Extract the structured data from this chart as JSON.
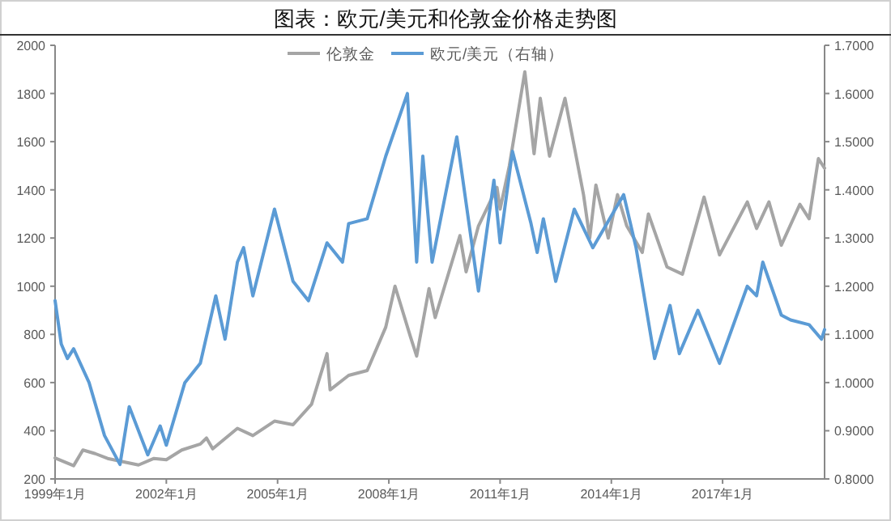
{
  "chart_data": {
    "type": "line",
    "title": "图表：欧元/美元和伦敦金价格走势图",
    "legend": "top",
    "xlim": [
      "1999-01",
      "2019-10"
    ],
    "xticks": [
      {
        "value": "1999-01",
        "label": "1999年1月"
      },
      {
        "value": "2002-01",
        "label": "2002年1月"
      },
      {
        "value": "2005-01",
        "label": "2005年1月"
      },
      {
        "value": "2008-01",
        "label": "2008年1月"
      },
      {
        "value": "2011-01",
        "label": "2011年1月"
      },
      {
        "value": "2014-01",
        "label": "2014年1月"
      },
      {
        "value": "2017-01",
        "label": "2017年1月"
      }
    ],
    "ylim": [
      200,
      2000
    ],
    "yticks": [
      200,
      400,
      600,
      800,
      1000,
      1200,
      1400,
      1600,
      1800,
      2000
    ],
    "y2lim": [
      0.8,
      1.7
    ],
    "y2ticks": [
      {
        "value": 0.8,
        "label": "0.8000"
      },
      {
        "value": 0.9,
        "label": "0.9000"
      },
      {
        "value": 1.0,
        "label": "1.0000"
      },
      {
        "value": 1.1,
        "label": "1.1000"
      },
      {
        "value": 1.2,
        "label": "1.2000"
      },
      {
        "value": 1.3,
        "label": "1.3000"
      },
      {
        "value": 1.4,
        "label": "1.4000"
      },
      {
        "value": 1.5,
        "label": "1.5000"
      },
      {
        "value": 1.6,
        "label": "1.6000"
      },
      {
        "value": 1.7,
        "label": "1.7000"
      }
    ],
    "series": [
      {
        "name": "伦敦金",
        "color": "#a5a5a5",
        "x": [
          "1999-01",
          "1999-07",
          "1999-10",
          "2000-02",
          "2000-06",
          "2001-04",
          "2001-09",
          "2002-01",
          "2002-06",
          "2002-12",
          "2003-02",
          "2003-04",
          "2003-12",
          "2004-05",
          "2004-12",
          "2005-06",
          "2005-12",
          "2006-05",
          "2006-06",
          "2006-12",
          "2007-06",
          "2007-12",
          "2008-03",
          "2008-08",
          "2008-10",
          "2009-02",
          "2009-04",
          "2009-12",
          "2010-02",
          "2010-06",
          "2010-12",
          "2011-01",
          "2011-04",
          "2011-09",
          "2011-12",
          "2012-02",
          "2012-05",
          "2012-10",
          "2013-04",
          "2013-06",
          "2013-08",
          "2013-12",
          "2014-03",
          "2014-06",
          "2014-11",
          "2015-01",
          "2015-07",
          "2015-12",
          "2016-07",
          "2016-12",
          "2017-09",
          "2017-12",
          "2018-04",
          "2018-08",
          "2019-02",
          "2019-05",
          "2019-08",
          "2019-10"
        ],
        "values": [
          287,
          255,
          320,
          305,
          285,
          258,
          285,
          280,
          320,
          345,
          370,
          325,
          410,
          380,
          440,
          425,
          510,
          720,
          570,
          630,
          650,
          830,
          1000,
          790,
          710,
          990,
          870,
          1210,
          1060,
          1250,
          1410,
          1320,
          1500,
          1890,
          1550,
          1780,
          1540,
          1780,
          1380,
          1200,
          1420,
          1200,
          1380,
          1250,
          1140,
          1300,
          1080,
          1050,
          1370,
          1130,
          1350,
          1240,
          1350,
          1170,
          1340,
          1280,
          1530,
          1490
        ]
      },
      {
        "name": "欧元/美元（右轴）",
        "color": "#5b9bd5",
        "axis": "y2",
        "x": [
          "1999-01",
          "1999-03",
          "1999-05",
          "1999-07",
          "1999-12",
          "2000-05",
          "2000-10",
          "2001-01",
          "2001-07",
          "2001-11",
          "2002-01",
          "2002-07",
          "2002-12",
          "2003-05",
          "2003-08",
          "2003-12",
          "2004-02",
          "2004-05",
          "2004-12",
          "2005-06",
          "2005-11",
          "2006-05",
          "2006-10",
          "2006-12",
          "2007-06",
          "2007-12",
          "2008-07",
          "2008-10",
          "2008-12",
          "2009-03",
          "2009-11",
          "2010-06",
          "2010-11",
          "2011-01",
          "2011-05",
          "2011-11",
          "2012-01",
          "2012-03",
          "2012-07",
          "2013-01",
          "2013-07",
          "2014-05",
          "2014-09",
          "2015-03",
          "2015-08",
          "2015-11",
          "2016-05",
          "2016-12",
          "2017-09",
          "2017-12",
          "2018-02",
          "2018-08",
          "2018-11",
          "2019-05",
          "2019-09",
          "2019-10"
        ],
        "values": [
          1.17,
          1.08,
          1.05,
          1.07,
          1.0,
          0.89,
          0.83,
          0.95,
          0.85,
          0.91,
          0.87,
          1.0,
          1.04,
          1.18,
          1.09,
          1.25,
          1.28,
          1.18,
          1.36,
          1.21,
          1.17,
          1.29,
          1.25,
          1.33,
          1.34,
          1.47,
          1.6,
          1.25,
          1.47,
          1.25,
          1.51,
          1.19,
          1.42,
          1.29,
          1.48,
          1.33,
          1.27,
          1.34,
          1.21,
          1.36,
          1.28,
          1.39,
          1.28,
          1.05,
          1.16,
          1.06,
          1.15,
          1.04,
          1.2,
          1.18,
          1.25,
          1.14,
          1.13,
          1.12,
          1.09,
          1.11
        ]
      }
    ]
  }
}
